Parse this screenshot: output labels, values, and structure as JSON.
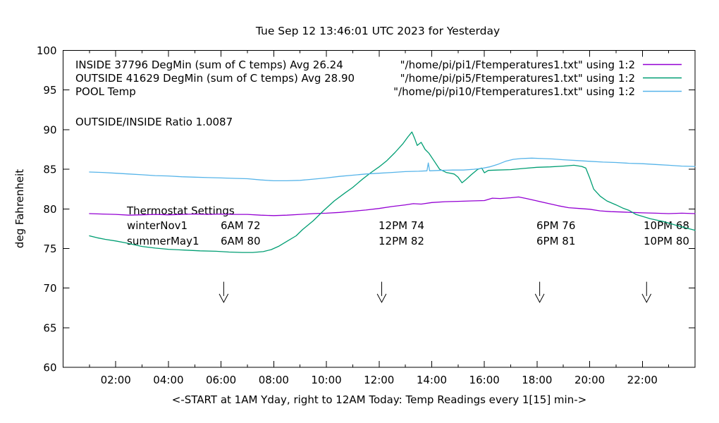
{
  "title": "Tue Sep 12 13:46:01 UTC 2023 for Yesterday",
  "ylabel": "deg Fahrenheit",
  "xlabel": "<-START at 1AM Yday, right to 12AM Today:  Temp Readings every 1[15] min->",
  "legend": {
    "rows": [
      {
        "label": "INSIDE 37796 DegMin (sum of C temps) Avg 26.24",
        "source": "\"/home/pi/pi1/Ftemperatures1.txt\" using 1:2",
        "color": "#9400d3"
      },
      {
        "label": "OUTSIDE 41629 DegMin (sum of C temps) Avg 28.90",
        "source": "\"/home/pi/pi5/Ftemperatures1.txt\" using 1:2",
        "color": "#009e73"
      },
      {
        "label": "POOL Temp",
        "source": "\"/home/pi/pi10/Ftemperatures1.txt\" using 1:2",
        "color": "#56b4e9"
      }
    ],
    "ratio_note": "OUTSIDE/INSIDE Ratio 1.0087"
  },
  "thermostat": {
    "heading": "Thermostat Settings",
    "rows": [
      {
        "cells": [
          "winterNov1",
          "6AM 72",
          "12PM 74",
          "6PM 76",
          "10PM 68"
        ]
      },
      {
        "cells": [
          "summerMay1",
          "6AM 80",
          "12PM 82",
          "6PM 81",
          "10PM 80"
        ]
      }
    ]
  },
  "chart_data": {
    "type": "line",
    "title": "Tue Sep 12 13:46:01 UTC 2023 for Yesterday",
    "xlabel": "<-START at 1AM Yday, right to 12AM Today:  Temp Readings every 1[15] min->",
    "ylabel": "deg Fahrenheit",
    "x_unit": "hour_of_day",
    "xlim": [
      0,
      24
    ],
    "ylim": [
      60,
      100
    ],
    "grid": false,
    "legend_position": "top-right-inside",
    "x_major_ticks": [
      {
        "hour": 2,
        "label": "02:00"
      },
      {
        "hour": 4,
        "label": "04:00"
      },
      {
        "hour": 6,
        "label": "06:00"
      },
      {
        "hour": 8,
        "label": "08:00"
      },
      {
        "hour": 10,
        "label": "10:00"
      },
      {
        "hour": 12,
        "label": "12:00"
      },
      {
        "hour": 14,
        "label": "14:00"
      },
      {
        "hour": 16,
        "label": "16:00"
      },
      {
        "hour": 18,
        "label": "18:00"
      },
      {
        "hour": 20,
        "label": "20:00"
      },
      {
        "hour": 22,
        "label": "22:00"
      }
    ],
    "x_minor_hours": [
      1,
      3,
      5,
      7,
      9,
      11,
      13,
      15,
      17,
      19,
      21,
      23
    ],
    "y_ticks": [
      60,
      65,
      70,
      75,
      80,
      85,
      90,
      95,
      100
    ],
    "arrows": {
      "hours": [
        6.1,
        12.1,
        18.1,
        22.16
      ],
      "temp_top": 70.8,
      "temp_stem_bottom": 69.0,
      "temp_tip": 68.2,
      "head_half_width_hours": 0.17
    },
    "series": [
      {
        "name": "INSIDE",
        "color": "#9400d3",
        "points": [
          [
            1,
            79.4
          ],
          [
            1.5,
            79.35
          ],
          [
            2,
            79.3
          ],
          [
            2.5,
            79.2
          ],
          [
            3,
            79.25
          ],
          [
            3.5,
            79.3
          ],
          [
            4,
            79.25
          ],
          [
            4.5,
            79.3
          ],
          [
            5,
            79.35
          ],
          [
            5.5,
            79.3
          ],
          [
            6,
            79.35
          ],
          [
            6.5,
            79.3
          ],
          [
            7,
            79.3
          ],
          [
            7.5,
            79.2
          ],
          [
            8,
            79.15
          ],
          [
            8.5,
            79.2
          ],
          [
            9,
            79.3
          ],
          [
            9.5,
            79.4
          ],
          [
            10,
            79.45
          ],
          [
            10.5,
            79.55
          ],
          [
            11,
            79.7
          ],
          [
            11.5,
            79.85
          ],
          [
            12,
            80.05
          ],
          [
            12.5,
            80.3
          ],
          [
            13,
            80.5
          ],
          [
            13.3,
            80.65
          ],
          [
            13.6,
            80.6
          ],
          [
            14,
            80.8
          ],
          [
            14.5,
            80.9
          ],
          [
            15,
            80.95
          ],
          [
            15.5,
            81
          ],
          [
            16,
            81.05
          ],
          [
            16.3,
            81.35
          ],
          [
            16.6,
            81.3
          ],
          [
            17,
            81.4
          ],
          [
            17.3,
            81.5
          ],
          [
            17.6,
            81.3
          ],
          [
            18,
            81
          ],
          [
            18.4,
            80.7
          ],
          [
            18.8,
            80.4
          ],
          [
            19.2,
            80.15
          ],
          [
            19.6,
            80.05
          ],
          [
            20,
            79.95
          ],
          [
            20.4,
            79.75
          ],
          [
            20.8,
            79.65
          ],
          [
            21.2,
            79.6
          ],
          [
            21.6,
            79.55
          ],
          [
            22,
            79.5
          ],
          [
            22.5,
            79.45
          ],
          [
            23,
            79.4
          ],
          [
            23.5,
            79.45
          ],
          [
            24,
            79.4
          ]
        ]
      },
      {
        "name": "OUTSIDE",
        "color": "#009e73",
        "points": [
          [
            1,
            76.6
          ],
          [
            1.3,
            76.35
          ],
          [
            1.6,
            76.15
          ],
          [
            2,
            75.95
          ],
          [
            2.4,
            75.7
          ],
          [
            3,
            75.25
          ],
          [
            3.5,
            75.05
          ],
          [
            4,
            74.9
          ],
          [
            4.6,
            74.8
          ],
          [
            5.2,
            74.7
          ],
          [
            5.8,
            74.65
          ],
          [
            6.3,
            74.55
          ],
          [
            6.8,
            74.5
          ],
          [
            7.2,
            74.5
          ],
          [
            7.6,
            74.6
          ],
          [
            7.9,
            74.85
          ],
          [
            8.2,
            75.3
          ],
          [
            8.5,
            75.9
          ],
          [
            8.85,
            76.6
          ],
          [
            9.1,
            77.4
          ],
          [
            9.5,
            78.5
          ],
          [
            9.9,
            79.8
          ],
          [
            10.3,
            81
          ],
          [
            10.7,
            82
          ],
          [
            11,
            82.7
          ],
          [
            11.35,
            83.7
          ],
          [
            11.7,
            84.6
          ],
          [
            12,
            85.3
          ],
          [
            12.3,
            86.1
          ],
          [
            12.6,
            87.1
          ],
          [
            12.9,
            88.2
          ],
          [
            13.1,
            89.1
          ],
          [
            13.25,
            89.7
          ],
          [
            13.35,
            88.9
          ],
          [
            13.45,
            88
          ],
          [
            13.6,
            88.4
          ],
          [
            13.75,
            87.5
          ],
          [
            13.9,
            87
          ],
          [
            14.1,
            86
          ],
          [
            14.3,
            85
          ],
          [
            14.55,
            84.6
          ],
          [
            14.85,
            84.4
          ],
          [
            15,
            84
          ],
          [
            15.15,
            83.3
          ],
          [
            15.3,
            83.7
          ],
          [
            15.5,
            84.3
          ],
          [
            15.75,
            85
          ],
          [
            15.9,
            85.15
          ],
          [
            16,
            84.55
          ],
          [
            16.15,
            84.85
          ],
          [
            16.5,
            84.9
          ],
          [
            17,
            84.95
          ],
          [
            17.5,
            85.1
          ],
          [
            18,
            85.25
          ],
          [
            18.5,
            85.3
          ],
          [
            19,
            85.4
          ],
          [
            19.4,
            85.5
          ],
          [
            19.7,
            85.35
          ],
          [
            19.85,
            85.15
          ],
          [
            20,
            83.9
          ],
          [
            20.15,
            82.5
          ],
          [
            20.4,
            81.6
          ],
          [
            20.65,
            81
          ],
          [
            21,
            80.5
          ],
          [
            21.25,
            80.1
          ],
          [
            21.5,
            79.8
          ],
          [
            21.75,
            79.3
          ],
          [
            22,
            79.05
          ],
          [
            22.3,
            78.75
          ],
          [
            22.8,
            78.4
          ],
          [
            23.3,
            77.9
          ],
          [
            23.7,
            77.55
          ],
          [
            24,
            77.3
          ]
        ]
      },
      {
        "name": "POOL",
        "color": "#56b4e9",
        "points": [
          [
            1,
            84.65
          ],
          [
            1.5,
            84.6
          ],
          [
            2,
            84.5
          ],
          [
            2.5,
            84.4
          ],
          [
            3,
            84.3
          ],
          [
            3.5,
            84.2
          ],
          [
            4,
            84.15
          ],
          [
            4.5,
            84.05
          ],
          [
            5,
            84
          ],
          [
            5.5,
            83.95
          ],
          [
            6,
            83.9
          ],
          [
            6.5,
            83.85
          ],
          [
            7,
            83.8
          ],
          [
            7.5,
            83.65
          ],
          [
            8,
            83.55
          ],
          [
            8.5,
            83.55
          ],
          [
            9,
            83.6
          ],
          [
            9.5,
            83.75
          ],
          [
            10,
            83.9
          ],
          [
            10.5,
            84.1
          ],
          [
            11,
            84.25
          ],
          [
            11.5,
            84.4
          ],
          [
            12,
            84.5
          ],
          [
            12.5,
            84.6
          ],
          [
            13,
            84.7
          ],
          [
            13.5,
            84.75
          ],
          [
            13.82,
            84.8
          ],
          [
            13.87,
            85.8
          ],
          [
            13.92,
            84.8
          ],
          [
            14.3,
            84.85
          ],
          [
            14.8,
            84.9
          ],
          [
            15.2,
            84.9
          ],
          [
            15.6,
            85
          ],
          [
            15.9,
            85.1
          ],
          [
            16.2,
            85.3
          ],
          [
            16.5,
            85.6
          ],
          [
            16.8,
            86
          ],
          [
            17.1,
            86.25
          ],
          [
            17.4,
            86.35
          ],
          [
            17.8,
            86.4
          ],
          [
            18.2,
            86.35
          ],
          [
            18.6,
            86.3
          ],
          [
            19,
            86.2
          ],
          [
            19.5,
            86.1
          ],
          [
            20,
            86
          ],
          [
            20.5,
            85.9
          ],
          [
            21,
            85.85
          ],
          [
            21.5,
            85.75
          ],
          [
            22,
            85.7
          ],
          [
            22.5,
            85.6
          ],
          [
            23,
            85.5
          ],
          [
            23.5,
            85.4
          ],
          [
            24,
            85.35
          ]
        ]
      }
    ]
  }
}
